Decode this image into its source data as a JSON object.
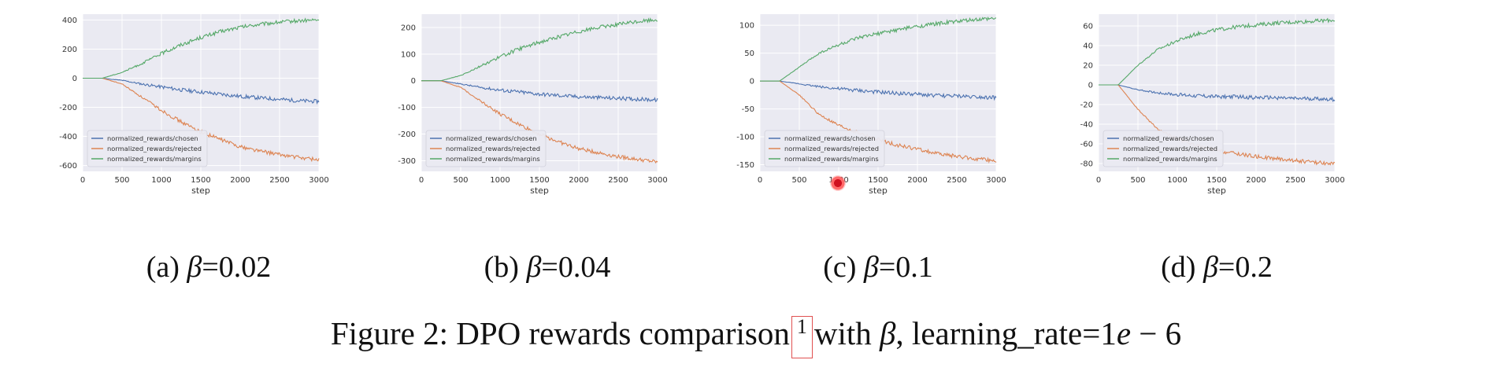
{
  "colors": {
    "chosen": "#4c72b0",
    "rejected": "#dd8452",
    "margins": "#55a868",
    "plot_bg": "#eaeaf2",
    "grid": "#ffffff"
  },
  "subcaptions": [
    {
      "prefix": "(a) ",
      "beta_symbol": "β",
      "suffix": "=0.02"
    },
    {
      "prefix": "(b) ",
      "beta_symbol": "β",
      "suffix": "=0.04"
    },
    {
      "prefix": "(c) ",
      "beta_symbol": "β",
      "suffix": "=0.1"
    },
    {
      "prefix": "(d) ",
      "beta_symbol": "β",
      "suffix": "=0.2"
    }
  ],
  "figure_caption": {
    "part1": "Figure 2: DPO rewards comparison",
    "footnote": "1",
    "part2": "with ",
    "beta_symbol": "β",
    "part3": ", learning_rate=1",
    "e_symbol": "e",
    "part4": " − 6"
  },
  "chart_data": [
    {
      "type": "line",
      "xlabel": "step",
      "ylabel": "",
      "xlim": [
        0,
        3000
      ],
      "ylim": [
        -640,
        440
      ],
      "xticks": [
        0,
        500,
        1000,
        1500,
        2000,
        2500,
        3000
      ],
      "yticks": [
        400,
        200,
        0,
        -200,
        -400,
        -600
      ],
      "grid": true,
      "legend_position": "lower-left",
      "x": [
        0,
        250,
        500,
        750,
        1000,
        1250,
        1500,
        1750,
        2000,
        2250,
        2500,
        2750,
        3000
      ],
      "series": [
        {
          "name": "normalized_rewards/chosen",
          "values": [
            0,
            0,
            -15,
            -40,
            -60,
            -80,
            -95,
            -110,
            -125,
            -135,
            -145,
            -155,
            -160
          ]
        },
        {
          "name": "normalized_rewards/rejected",
          "values": [
            0,
            0,
            -40,
            -130,
            -220,
            -300,
            -370,
            -420,
            -470,
            -500,
            -525,
            -545,
            -560
          ]
        },
        {
          "name": "normalized_rewards/margins",
          "values": [
            0,
            0,
            40,
            100,
            170,
            230,
            280,
            320,
            350,
            370,
            385,
            395,
            400
          ]
        }
      ]
    },
    {
      "type": "line",
      "xlabel": "step",
      "ylabel": "",
      "xlim": [
        0,
        3000
      ],
      "ylim": [
        -340,
        250
      ],
      "xticks": [
        0,
        500,
        1000,
        1500,
        2000,
        2500,
        3000
      ],
      "yticks": [
        200,
        100,
        0,
        -100,
        -200,
        -300
      ],
      "grid": true,
      "legend_position": "lower-left",
      "x": [
        0,
        250,
        500,
        750,
        1000,
        1250,
        1500,
        1750,
        2000,
        2250,
        2500,
        2750,
        3000
      ],
      "series": [
        {
          "name": "normalized_rewards/chosen",
          "values": [
            0,
            0,
            -12,
            -25,
            -35,
            -42,
            -50,
            -55,
            -60,
            -63,
            -66,
            -69,
            -72
          ]
        },
        {
          "name": "normalized_rewards/rejected",
          "values": [
            0,
            0,
            -25,
            -75,
            -125,
            -165,
            -200,
            -230,
            -255,
            -270,
            -285,
            -295,
            -305
          ]
        },
        {
          "name": "normalized_rewards/margins",
          "values": [
            0,
            0,
            20,
            55,
            90,
            120,
            145,
            165,
            185,
            200,
            212,
            222,
            230
          ]
        }
      ]
    },
    {
      "type": "line",
      "xlabel": "step",
      "ylabel": "",
      "xlim": [
        0,
        3000
      ],
      "ylim": [
        -162,
        120
      ],
      "xticks": [
        0,
        500,
        1000,
        1500,
        2000,
        2500,
        3000
      ],
      "yticks": [
        100,
        50,
        0,
        -50,
        -100,
        -150
      ],
      "grid": true,
      "legend_position": "lower-left",
      "x": [
        0,
        250,
        500,
        750,
        1000,
        1250,
        1500,
        1750,
        2000,
        2250,
        2500,
        2750,
        3000
      ],
      "series": [
        {
          "name": "normalized_rewards/chosen",
          "values": [
            0,
            0,
            -5,
            -10,
            -14,
            -17,
            -20,
            -22,
            -24,
            -26,
            -27,
            -28,
            -30
          ]
        },
        {
          "name": "normalized_rewards/rejected",
          "values": [
            0,
            0,
            -25,
            -60,
            -80,
            -93,
            -105,
            -115,
            -122,
            -130,
            -135,
            -140,
            -143
          ]
        },
        {
          "name": "normalized_rewards/margins",
          "values": [
            0,
            0,
            25,
            50,
            65,
            77,
            85,
            92,
            98,
            103,
            107,
            110,
            112
          ]
        }
      ]
    },
    {
      "type": "line",
      "xlabel": "step",
      "ylabel": "",
      "xlim": [
        0,
        3000
      ],
      "ylim": [
        -88,
        72
      ],
      "xticks": [
        0,
        500,
        1000,
        1500,
        2000,
        2500,
        3000
      ],
      "yticks": [
        60,
        40,
        20,
        0,
        -20,
        -40,
        -60,
        -80
      ],
      "grid": true,
      "legend_position": "lower-left",
      "x": [
        0,
        250,
        500,
        750,
        1000,
        1250,
        1500,
        1750,
        2000,
        2250,
        2500,
        2750,
        3000
      ],
      "series": [
        {
          "name": "normalized_rewards/chosen",
          "values": [
            0,
            0,
            -5,
            -8,
            -10,
            -11,
            -12,
            -12,
            -13,
            -13,
            -14,
            -14,
            -15
          ]
        },
        {
          "name": "normalized_rewards/rejected",
          "values": [
            0,
            0,
            -25,
            -45,
            -55,
            -62,
            -67,
            -70,
            -73,
            -75,
            -77,
            -79,
            -80
          ]
        },
        {
          "name": "normalized_rewards/margins",
          "values": [
            0,
            0,
            20,
            36,
            45,
            52,
            56,
            59,
            61,
            63,
            64,
            65,
            66
          ]
        }
      ]
    }
  ]
}
